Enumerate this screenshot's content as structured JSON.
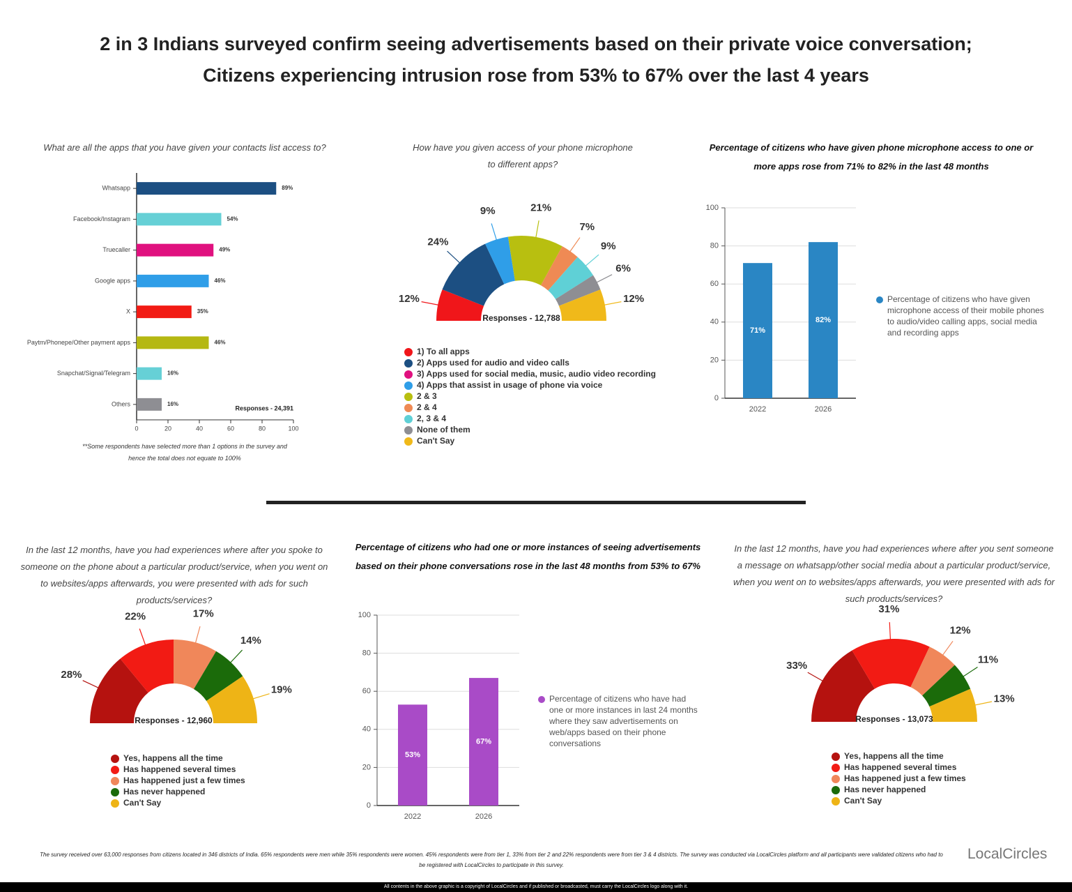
{
  "title": [
    "2 in 3 Indians surveyed confirm seeing advertisements based on their private voice conversation;",
    "Citizens experiencing intrusion rose from 53% to 67% over the last 4 years"
  ],
  "chart_data": [
    {
      "type": "barh",
      "title": "What are all the apps that you have given your contacts list access to?",
      "categories": [
        "Whatsapp",
        "Facebook/Instagram",
        "Truecaller",
        "Google apps",
        "X",
        "Paytm/Phonepe/Other payment apps",
        "Snapchat/Signal/Telegram",
        "Others"
      ],
      "values": [
        89,
        54,
        49,
        46,
        35,
        46,
        16,
        16
      ],
      "value_labels": [
        "89%",
        "54%",
        "49%",
        "46%",
        "35%",
        "46%",
        "16%",
        "16%"
      ],
      "colors": [
        "#1c4f82",
        "#66d0d6",
        "#e0117f",
        "#2f9ee8",
        "#f21b14",
        "#b5b812",
        "#66d0d6",
        "#8e8e93"
      ],
      "xlim": [
        0,
        100
      ],
      "xticks": [
        0,
        20,
        40,
        60,
        80,
        100
      ],
      "annotation": "Responses - 24,391",
      "footnote": "**Some respondents have selected more than 1 options in the survey and hence the total does not equate to 100%"
    },
    {
      "type": "donut",
      "title": "How have you given access of your phone microphone to different apps?",
      "categories": [
        "1) To all apps",
        "2) Apps used for audio and video calls",
        "3) Apps used for social media, music, audio video recording",
        "4) Apps that assist in usage of phone via voice",
        "2 & 3",
        "2 & 4",
        "2, 3 & 4",
        "None of them",
        "Can't Say"
      ],
      "values": [
        12,
        24,
        0,
        9,
        21,
        7,
        9,
        6,
        12
      ],
      "value_labels": [
        "12%",
        "24%",
        null,
        "9%",
        "21%",
        "7%",
        "9%",
        "6%",
        "12%"
      ],
      "colors": [
        "#f0161a",
        "#1c4f82",
        "#e0117f",
        "#2f9ee8",
        "#b8bf10",
        "#ef8a54",
        "#5fd0d6",
        "#8e8e93",
        "#f0b91a"
      ],
      "annotation": "Responses - 12,788"
    },
    {
      "type": "bar",
      "title": "Percentage of citizens who have given phone microphone access to one or more apps rose from 71% to 82% in the last 48 months",
      "categories": [
        "2022",
        "2026"
      ],
      "series": [
        {
          "name": "Percentage of citizens who have given microphone access of their mobile phones to audio/video calling apps, social media and recording apps",
          "color": "#2a86c4",
          "values": [
            71,
            82
          ],
          "value_labels": [
            "71%",
            "82%"
          ]
        }
      ],
      "ylim": [
        0,
        100
      ],
      "yticks": [
        0,
        20,
        40,
        60,
        80,
        100
      ],
      "grid": true
    },
    {
      "type": "donut",
      "title": "In the last 12 months, have you had experiences where after you spoke to someone on the phone about a particular product/service, when you went on to websites/apps afterwards, you were presented with ads for such products/services?",
      "categories": [
        "Yes, happens all the time",
        "Has happened several times",
        "Has happened just a few times",
        "Has never happened",
        "Can't Say"
      ],
      "values": [
        28,
        22,
        17,
        14,
        19
      ],
      "value_labels": [
        "28%",
        "22%",
        "17%",
        "14%",
        "19%"
      ],
      "colors": [
        "#b5120f",
        "#f21b14",
        "#f0875a",
        "#1b6b0a",
        "#eeb416"
      ],
      "annotation": "Responses - 12,960"
    },
    {
      "type": "bar",
      "title": "Percentage of citizens who had one or more instances of seeing advertisements based on their phone conversations rose in the last 48 months from 53% to 67%",
      "categories": [
        "2022",
        "2026"
      ],
      "series": [
        {
          "name": "Percentage of citizens who have had one or more instances in last 24 months where they saw advertisements on web/apps based on their phone conversations",
          "color": "#a94bc7",
          "values": [
            53,
            67
          ],
          "value_labels": [
            "53%",
            "67%"
          ]
        }
      ],
      "ylim": [
        0,
        100
      ],
      "yticks": [
        0,
        20,
        40,
        60,
        80,
        100
      ],
      "grid": true
    },
    {
      "type": "donut",
      "title": "In the last 12 months, have you had experiences where after you sent someone a message on whatsapp/other social media about a particular product/service, when you went on to websites/apps afterwards, you were presented with ads for such products/services?",
      "categories": [
        "Yes, happens all the time",
        "Has happened several times",
        "Has happened just a few times",
        "Has never happened",
        "Can't Say"
      ],
      "values": [
        33,
        31,
        12,
        11,
        13
      ],
      "value_labels": [
        "33%",
        "31%",
        "12%",
        "11%",
        "13%"
      ],
      "colors": [
        "#b5120f",
        "#f21b14",
        "#f0875a",
        "#1b6b0a",
        "#eeb416"
      ],
      "annotation": "Responses - 13,073"
    }
  ],
  "footer": "The survey received over 63,000 responses from citizens located in 346 districts of India. 65% respondents were men while 35% respondents were women. 45% respondents were from tier 1, 33% from tier 2 and 22% respondents were from tier 3 & 4 districts. The survey was conducted via LocalCircles platform and all participants were validated citizens who had to be registered with LocalCircles to participate in this survey.",
  "logo": "LocalCircles",
  "copyright": "All contents in the above graphic is a copyright of LocalCircles and if published or broadcasted, must carry the LocalCircles logo along with it."
}
